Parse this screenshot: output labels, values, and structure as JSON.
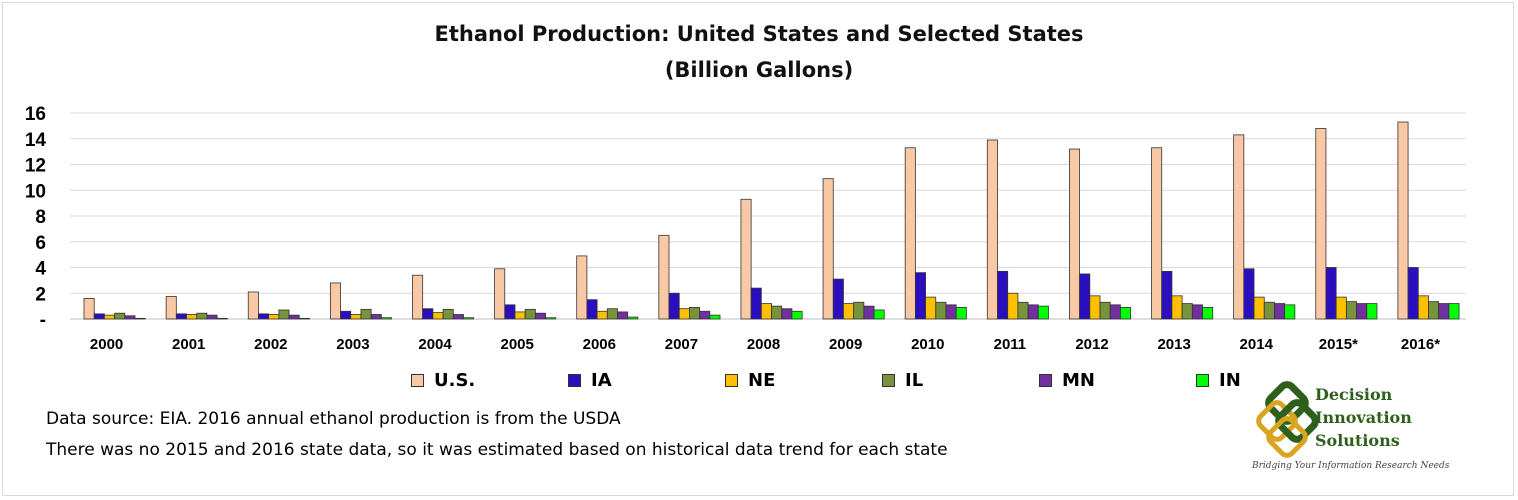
{
  "chart_data": {
    "type": "bar",
    "title": "Ethanol Production: United States and Selected States",
    "subtitle": "(Billion Gallons)",
    "categories": [
      "2000",
      "2001",
      "2002",
      "2003",
      "2004",
      "2005",
      "2006",
      "2007",
      "2008",
      "2009",
      "2010",
      "2011",
      "2012",
      "2013",
      "2014",
      "2015*",
      "2016*"
    ],
    "ylim": [
      0,
      16
    ],
    "yticks": [
      {
        "value": 0,
        "label": "-"
      },
      {
        "value": 2,
        "label": "2"
      },
      {
        "value": 4,
        "label": "4"
      },
      {
        "value": 6,
        "label": "6"
      },
      {
        "value": 8,
        "label": "8"
      },
      {
        "value": 10,
        "label": "10"
      },
      {
        "value": 12,
        "label": "12"
      },
      {
        "value": 14,
        "label": "14"
      },
      {
        "value": 16,
        "label": "16"
      }
    ],
    "grid": true,
    "legend_position": "bottom",
    "series": [
      {
        "name": "U.S.",
        "color": "#f8c9a4",
        "values": [
          1.6,
          1.75,
          2.1,
          2.8,
          3.4,
          3.9,
          4.9,
          6.5,
          9.3,
          10.9,
          13.3,
          13.9,
          13.2,
          13.3,
          14.3,
          14.8,
          15.3
        ]
      },
      {
        "name": "IA",
        "color": "#2b0fbf",
        "values": [
          0.4,
          0.4,
          0.4,
          0.6,
          0.8,
          1.1,
          1.5,
          2.0,
          2.4,
          3.1,
          3.6,
          3.7,
          3.5,
          3.7,
          3.9,
          4.0,
          4.0
        ]
      },
      {
        "name": "NE",
        "color": "#ffc000",
        "values": [
          0.3,
          0.35,
          0.35,
          0.35,
          0.5,
          0.55,
          0.6,
          0.8,
          1.2,
          1.2,
          1.7,
          2.0,
          1.8,
          1.8,
          1.7,
          1.7,
          1.8
        ]
      },
      {
        "name": "IL",
        "color": "#77933c",
        "values": [
          0.45,
          0.45,
          0.7,
          0.75,
          0.75,
          0.75,
          0.8,
          0.9,
          1.0,
          1.3,
          1.3,
          1.3,
          1.3,
          1.2,
          1.3,
          1.35,
          1.35
        ]
      },
      {
        "name": "MN",
        "color": "#7030a0",
        "values": [
          0.25,
          0.3,
          0.3,
          0.35,
          0.35,
          0.45,
          0.55,
          0.6,
          0.8,
          1.0,
          1.1,
          1.1,
          1.1,
          1.1,
          1.2,
          1.2,
          1.2
        ]
      },
      {
        "name": "IN",
        "color": "#00ff00",
        "values": [
          0.05,
          0.05,
          0.05,
          0.1,
          0.1,
          0.1,
          0.15,
          0.3,
          0.6,
          0.7,
          0.9,
          1.0,
          0.9,
          0.9,
          1.1,
          1.2,
          1.2
        ]
      }
    ]
  },
  "notes": {
    "line1": "Data source: EIA. 2016 annual ethanol production is from the USDA",
    "line2": "There was no 2015 and 2016 state data, so it was estimated based on historical data trend for each state"
  },
  "logo": {
    "line1": "Decision",
    "line2": "Innovation",
    "line3": "Solutions",
    "tagline": "Bridging Your Information Research Needs",
    "colors": {
      "green": "#2f5f1d",
      "gold": "#d9a521"
    }
  }
}
